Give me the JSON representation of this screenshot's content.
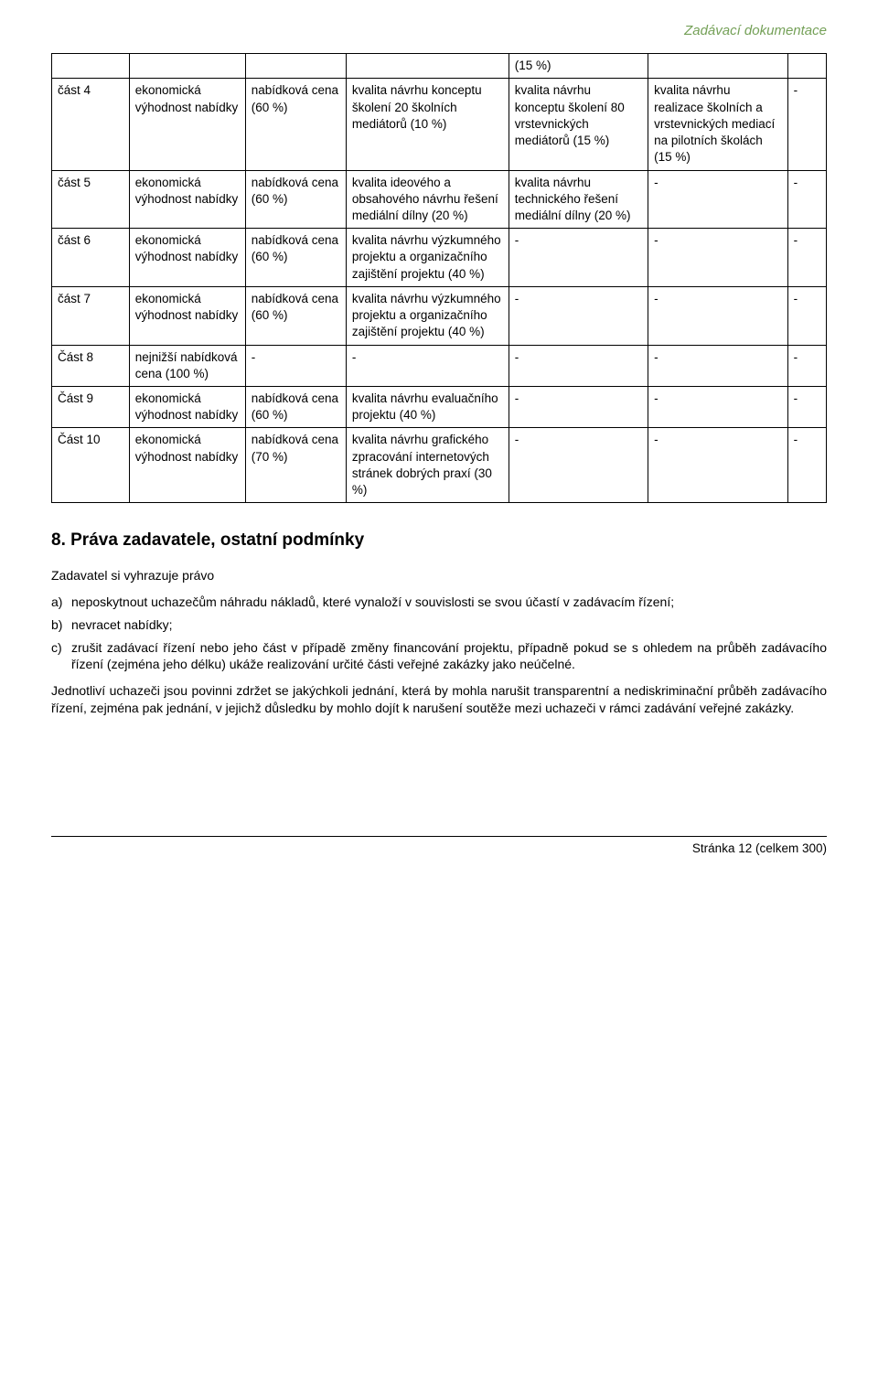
{
  "doc_header": "Zadávací dokumentace",
  "colors": {
    "header_color": "#74a057",
    "text_color": "#000000",
    "border_color": "#000000",
    "background": "#ffffff"
  },
  "table": {
    "rows": [
      {
        "c0": "",
        "c1": "",
        "c2": "",
        "c3": "",
        "c4": "(15 %)",
        "c5": "",
        "c6": ""
      },
      {
        "c0": "část 4",
        "c1": "ekonomická výhodnost nabídky",
        "c2": "nabídková cena (60 %)",
        "c3": "kvalita návrhu konceptu školení 20 školních mediátorů (10 %)",
        "c4": "kvalita návrhu konceptu školení 80 vrstevnických mediátorů (15 %)",
        "c5": "kvalita návrhu realizace školních a vrstevnických mediací na pilotních školách (15 %)",
        "c6": "-"
      },
      {
        "c0": "část 5",
        "c1": "ekonomická výhodnost nabídky",
        "c2": "nabídková cena (60 %)",
        "c3": "kvalita ideového a obsahového návrhu řešení mediální dílny (20 %)",
        "c4": "kvalita návrhu technického řešení mediální dílny (20 %)",
        "c5": "-",
        "c6": "-"
      },
      {
        "c0": "část 6",
        "c1": "ekonomická výhodnost nabídky",
        "c2": "nabídková cena (60 %)",
        "c3": "kvalita návrhu výzkumného projektu a organizačního zajištění projektu (40 %)",
        "c4": "-",
        "c5": "-",
        "c6": "-"
      },
      {
        "c0": "část 7",
        "c1": "ekonomická výhodnost nabídky",
        "c2": "nabídková cena (60 %)",
        "c3": "kvalita návrhu výzkumného projektu a organizačního zajištění projektu (40 %)",
        "c4": "-",
        "c5": "-",
        "c6": "-"
      },
      {
        "c0": "Část 8",
        "c1": "nejnižší nabídková cena (100 %)",
        "c2": "-",
        "c3": "-",
        "c4": "-",
        "c5": "-",
        "c6": "-"
      },
      {
        "c0": "Část 9",
        "c1": "ekonomická výhodnost nabídky",
        "c2": "nabídková cena (60 %)",
        "c3": "kvalita návrhu evaluačního projektu (40 %)",
        "c4": "-",
        "c5": "-",
        "c6": "-"
      },
      {
        "c0": "Část 10",
        "c1": "ekonomická výhodnost nabídky",
        "c2": "nabídková cena (70 %)",
        "c3": "kvalita návrhu grafického zpracování internetových stránek dobrých praxí (30 %)",
        "c4": "-",
        "c5": "-",
        "c6": "-"
      }
    ]
  },
  "section_heading": "8. Práva zadavatele, ostatní podmínky",
  "para_intro": "Zadavatel si vyhrazuje právo",
  "list_items": [
    {
      "marker": "a)",
      "text": "neposkytnout uchazečům náhradu nákladů, které vynaloží v souvislosti se svou účastí v zadávacím řízení;"
    },
    {
      "marker": "b)",
      "text": "nevracet nabídky;"
    },
    {
      "marker": "c)",
      "text": "zrušit zadávací řízení nebo jeho část v případě změny financování projektu, případně pokud se s ohledem na průběh zadávacího řízení (zejména jeho délku) ukáže realizování určité části veřejné zakázky jako neúčelné."
    }
  ],
  "para_final": "Jednotliví uchazeči jsou povinni zdržet se jakýchkoli jednání, která by mohla narušit transparentní a nediskriminační průběh zadávacího řízení, zejména pak jednání, v jejichž důsledku by mohlo dojít k narušení soutěže mezi uchazeči v rámci zadávání veřejné zakázky.",
  "footer": "Stránka 12 (celkem 300)"
}
